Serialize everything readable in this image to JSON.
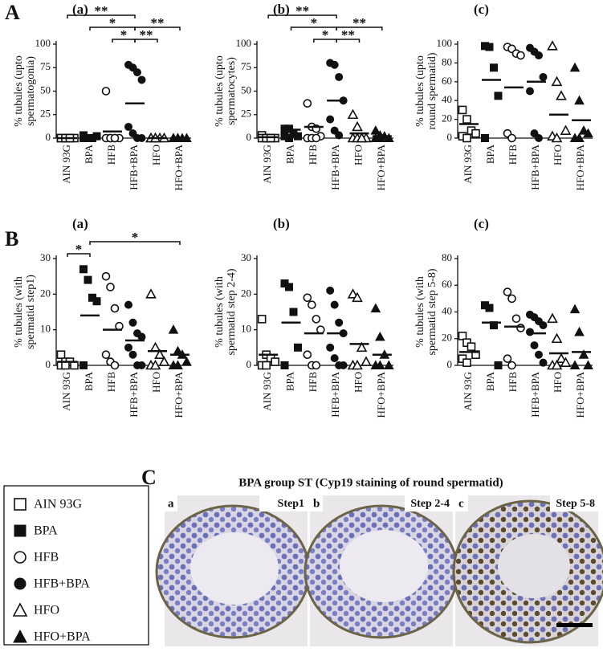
{
  "figure": {
    "row_labels": [
      "A",
      "B",
      "C"
    ],
    "micrograph": {
      "title": "BPA group ST (Cyp19 staining of round spermatid)",
      "panels": [
        {
          "letter": "a",
          "step": "Step1"
        },
        {
          "letter": "b",
          "step": "Step 2-4"
        },
        {
          "letter": "c",
          "step": "Step 5-8"
        }
      ]
    }
  },
  "chart_data": [
    {
      "type": "strip",
      "panel": "(a)",
      "ylabel": [
        "% tubules (upto",
        "spermatogonia)"
      ],
      "ylim": [
        0,
        100
      ],
      "yticks": [
        0,
        25,
        50,
        75,
        100
      ],
      "series": [
        {
          "name": "AIN 93G",
          "marker": "square-open",
          "values": [
            0,
            0,
            0,
            0,
            0,
            0,
            0
          ],
          "mean": 0
        },
        {
          "name": "BPA",
          "marker": "square",
          "values": [
            0,
            0,
            0,
            2,
            3,
            0
          ],
          "mean": 1
        },
        {
          "name": "HFB",
          "marker": "circle-open",
          "values": [
            50,
            0,
            0,
            0,
            0,
            0,
            0
          ],
          "mean": 7
        },
        {
          "name": "HFB+BPA",
          "marker": "circle",
          "values": [
            78,
            75,
            70,
            62,
            12,
            5,
            0,
            0
          ],
          "mean": 37
        },
        {
          "name": "HFO",
          "marker": "triangle-open",
          "values": [
            0,
            0,
            0,
            0,
            0,
            0
          ],
          "mean": 0
        },
        {
          "name": "HFO+BPA",
          "marker": "triangle",
          "values": [
            0,
            0,
            0,
            0,
            0,
            0
          ],
          "mean": 0
        }
      ],
      "significance": [
        {
          "from": 0,
          "to": 3,
          "label": "**",
          "level": 3
        },
        {
          "from": 1,
          "to": 3,
          "label": "*",
          "level": 2
        },
        {
          "from": 3,
          "to": 5,
          "label": "**",
          "level": 2
        },
        {
          "from": 2,
          "to": 3,
          "label": "*",
          "level": 1
        },
        {
          "from": 3,
          "to": 4,
          "label": "**",
          "level": 1
        }
      ]
    },
    {
      "type": "strip",
      "panel": "(b)",
      "ylabel": [
        "% tubules (upto",
        "spermatocytes)"
      ],
      "ylim": [
        0,
        100
      ],
      "yticks": [
        0,
        25,
        50,
        75,
        100
      ],
      "series": [
        {
          "name": "AIN 93G",
          "marker": "square-open",
          "values": [
            3,
            0,
            0,
            0,
            0,
            0,
            0
          ],
          "mean": 1
        },
        {
          "name": "BPA",
          "marker": "square",
          "values": [
            10,
            10,
            5,
            2,
            2,
            0
          ],
          "mean": 9
        },
        {
          "name": "HFB",
          "marker": "circle-open",
          "values": [
            37,
            12,
            10,
            2,
            0,
            0,
            0
          ],
          "mean": 12
        },
        {
          "name": "HFB+BPA",
          "marker": "circle",
          "values": [
            80,
            78,
            65,
            40,
            20,
            8,
            3
          ],
          "mean": 40
        },
        {
          "name": "HFO",
          "marker": "triangle-open",
          "values": [
            25,
            12,
            0,
            0,
            0,
            0,
            0
          ],
          "mean": 5
        },
        {
          "name": "HFO+BPA",
          "marker": "triangle",
          "values": [
            8,
            3,
            2,
            0,
            0,
            0
          ],
          "mean": 2
        }
      ],
      "significance": [
        {
          "from": 0,
          "to": 3,
          "label": "**",
          "level": 3
        },
        {
          "from": 1,
          "to": 3,
          "label": "*",
          "level": 2
        },
        {
          "from": 3,
          "to": 5,
          "label": "**",
          "level": 2
        },
        {
          "from": 2,
          "to": 3,
          "label": "*",
          "level": 1
        },
        {
          "from": 3,
          "to": 4,
          "label": "**",
          "level": 1
        }
      ]
    },
    {
      "type": "strip",
      "panel": "(c)",
      "ylabel": [
        "% tubules (upto",
        "round spermatid)"
      ],
      "ylim": [
        0,
        100
      ],
      "yticks": [
        0,
        20,
        40,
        60,
        80,
        100
      ],
      "series": [
        {
          "name": "AIN 93G",
          "marker": "square-open",
          "values": [
            30,
            20,
            8,
            5,
            2,
            0
          ],
          "mean": 15
        },
        {
          "name": "BPA",
          "marker": "square",
          "values": [
            98,
            97,
            75,
            45,
            0
          ],
          "mean": 62
        },
        {
          "name": "HFB",
          "marker": "circle-open",
          "values": [
            97,
            95,
            90,
            88,
            5,
            0
          ],
          "mean": 54
        },
        {
          "name": "HFB+BPA",
          "marker": "circle",
          "values": [
            96,
            92,
            88,
            65,
            50,
            5,
            0
          ],
          "mean": 60
        },
        {
          "name": "HFO",
          "marker": "triangle-open",
          "values": [
            98,
            60,
            45,
            8,
            2,
            0
          ],
          "mean": 25
        },
        {
          "name": "HFO+BPA",
          "marker": "triangle",
          "values": [
            75,
            40,
            8,
            5,
            0,
            0
          ],
          "mean": 19
        }
      ]
    },
    {
      "type": "strip",
      "panel": "(a)",
      "ylabel": [
        "% tubules (with",
        "spermatid step1)"
      ],
      "ylim": [
        0,
        30
      ],
      "yticks": [
        0,
        10,
        20,
        30
      ],
      "series": [
        {
          "name": "AIN 93G",
          "marker": "square-open",
          "values": [
            3,
            1,
            1,
            0,
            0,
            0
          ],
          "mean": 1
        },
        {
          "name": "BPA",
          "marker": "square",
          "values": [
            27,
            24,
            19,
            18,
            0
          ],
          "mean": 14
        },
        {
          "name": "HFB",
          "marker": "circle-open",
          "values": [
            25,
            22,
            16,
            11,
            3,
            1,
            0
          ],
          "mean": 10
        },
        {
          "name": "HFB+BPA",
          "marker": "circle",
          "values": [
            17,
            12,
            9,
            8,
            5,
            3,
            0,
            0
          ],
          "mean": 7
        },
        {
          "name": "HFO",
          "marker": "triangle-open",
          "values": [
            20,
            5,
            3,
            1,
            0,
            0
          ],
          "mean": 4
        },
        {
          "name": "HFO+BPA",
          "marker": "triangle",
          "values": [
            10,
            4,
            3,
            1,
            0,
            0
          ],
          "mean": 3
        }
      ],
      "significance": [
        {
          "from": 0,
          "to": 1,
          "label": "*",
          "level": 1
        },
        {
          "from": 1,
          "to": 5,
          "label": "*",
          "level": 2
        }
      ]
    },
    {
      "type": "strip",
      "panel": "(b)",
      "ylabel": [
        "% tubules (with",
        "spermatid step 2-4)"
      ],
      "ylim": [
        0,
        30
      ],
      "yticks": [
        0,
        10,
        20,
        30
      ],
      "series": [
        {
          "name": "AIN 93G",
          "marker": "square-open",
          "values": [
            13,
            3,
            2,
            1,
            0,
            0
          ],
          "mean": 3
        },
        {
          "name": "BPA",
          "marker": "square",
          "values": [
            23,
            22,
            15,
            5,
            0
          ],
          "mean": 12
        },
        {
          "name": "HFB",
          "marker": "circle-open",
          "values": [
            19,
            17,
            13,
            10,
            3,
            0,
            0
          ],
          "mean": 9
        },
        {
          "name": "HFB+BPA",
          "marker": "circle",
          "values": [
            21,
            17,
            12,
            9,
            5,
            2,
            0,
            0
          ],
          "mean": 9
        },
        {
          "name": "HFO",
          "marker": "triangle-open",
          "values": [
            20,
            19,
            5,
            1,
            0,
            0
          ],
          "mean": 6
        },
        {
          "name": "HFO+BPA",
          "marker": "triangle",
          "values": [
            16,
            8,
            3,
            0,
            0,
            0
          ],
          "mean": 3
        }
      ]
    },
    {
      "type": "strip",
      "panel": "(c)",
      "ylabel": [
        "% tubules (with",
        "spermatid step 5-8)"
      ],
      "ylim": [
        0,
        80
      ],
      "yticks": [
        0,
        20,
        40,
        60,
        80
      ],
      "series": [
        {
          "name": "AIN 93G",
          "marker": "square-open",
          "values": [
            22,
            17,
            14,
            8,
            5,
            2
          ],
          "mean": 10
        },
        {
          "name": "BPA",
          "marker": "square",
          "values": [
            45,
            43,
            30,
            0
          ],
          "mean": 32
        },
        {
          "name": "HFB",
          "marker": "circle-open",
          "values": [
            55,
            50,
            35,
            28,
            5,
            0
          ],
          "mean": 29
        },
        {
          "name": "HFB+BPA",
          "marker": "circle",
          "values": [
            38,
            36,
            33,
            30,
            25,
            15,
            8,
            2
          ],
          "mean": 24
        },
        {
          "name": "HFO",
          "marker": "triangle-open",
          "values": [
            35,
            20,
            5,
            2,
            0,
            0
          ],
          "mean": 9
        },
        {
          "name": "HFO+BPA",
          "marker": "triangle",
          "values": [
            42,
            25,
            8,
            0,
            0
          ],
          "mean": 10
        }
      ]
    }
  ]
}
